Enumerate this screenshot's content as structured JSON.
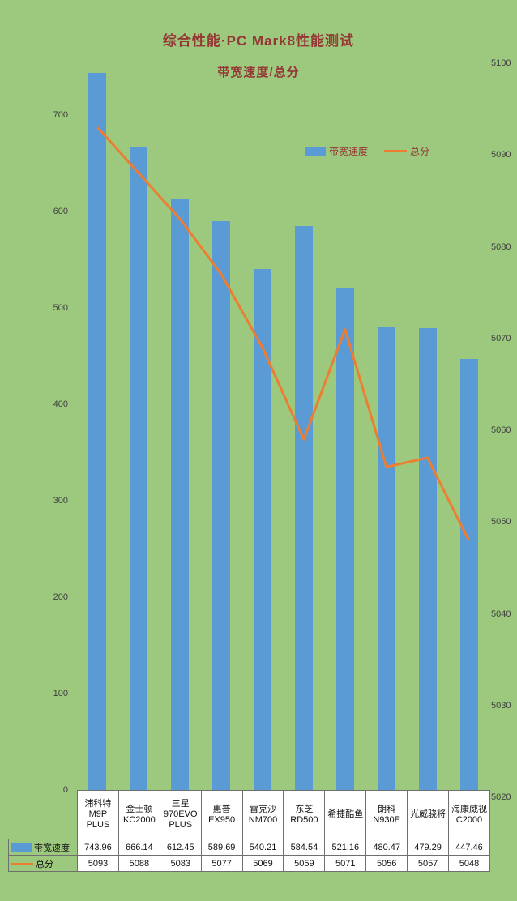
{
  "chart_data": {
    "type": "bar",
    "combo": "bar+line",
    "title": "综合性能·PC Mark8性能测试",
    "subtitle": "带宽速度/总分",
    "categories": [
      "浦科特 M9P PLUS",
      "金士顿 KC2000",
      "三星 970EVO PLUS",
      "惠普 EX950",
      "雷克沙 NM700",
      "东芝 RD500",
      "希捷酷鱼",
      "朗科 N930E",
      "光威骁将",
      "海康威视 C2000"
    ],
    "series": [
      {
        "name": "带宽速度",
        "type": "bar",
        "axis": "left",
        "color": "#5B9BD5",
        "values": [
          743.96,
          666.14,
          612.45,
          589.69,
          540.21,
          584.54,
          521.16,
          480.47,
          479.29,
          447.46
        ]
      },
      {
        "name": "总分",
        "type": "line",
        "axis": "right",
        "color": "#ED7D31",
        "values": [
          5093,
          5088,
          5083,
          5077,
          5069,
          5059,
          5071,
          5056,
          5057,
          5048
        ]
      }
    ],
    "left_axis": {
      "min": 0,
      "max": 700,
      "step": 100,
      "ticks": [
        0,
        100,
        200,
        300,
        400,
        500,
        600,
        700
      ]
    },
    "right_axis": {
      "min": 5020,
      "max": 5100,
      "step": 10,
      "ticks": [
        5020,
        5030,
        5040,
        5050,
        5060,
        5070,
        5080,
        5090,
        5100
      ]
    },
    "legend_position": "inside-top-right",
    "grid": false,
    "data_table_shown": true,
    "colors": {
      "background": "#9DC97E",
      "bar": "#5B9BD5",
      "line": "#ED7D31",
      "title_text": "#943735",
      "axis_text": "#3F3F3F",
      "table_border": "#6F6F6F"
    }
  }
}
